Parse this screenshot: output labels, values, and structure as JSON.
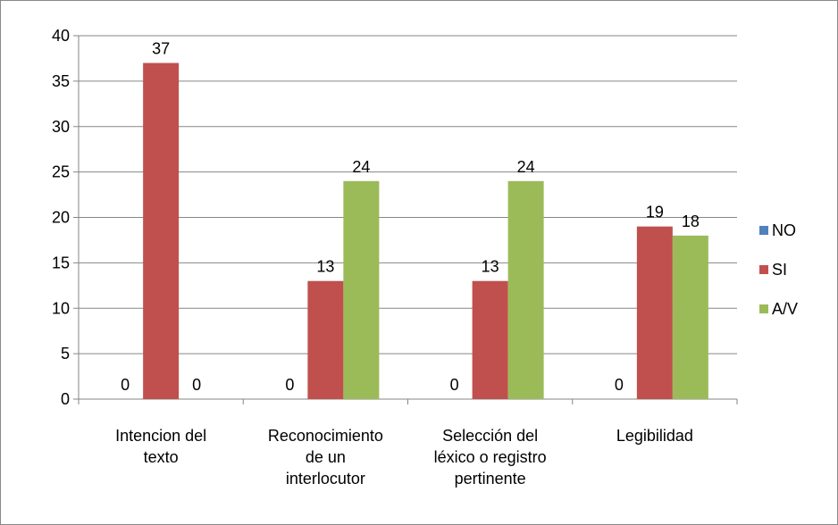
{
  "chart_data": {
    "type": "bar",
    "categories": [
      "Intencion del\ntexto",
      "Reconocimiento\nde un\ninterlocutor",
      "Selección del\nléxico o registro\npertinente",
      "Legibilidad"
    ],
    "series": [
      {
        "name": "NO",
        "color": "#4f81bd",
        "values": [
          0,
          0,
          0,
          0
        ]
      },
      {
        "name": "SI",
        "color": "#c0504d",
        "values": [
          37,
          13,
          13,
          19
        ]
      },
      {
        "name": "A/V",
        "color": "#9bbb59",
        "values": [
          0,
          24,
          24,
          18
        ]
      }
    ],
    "ylim": [
      0,
      40
    ],
    "yticks": [
      0,
      5,
      10,
      15,
      20,
      25,
      30,
      35,
      40
    ],
    "grid": true,
    "legend": "right"
  }
}
